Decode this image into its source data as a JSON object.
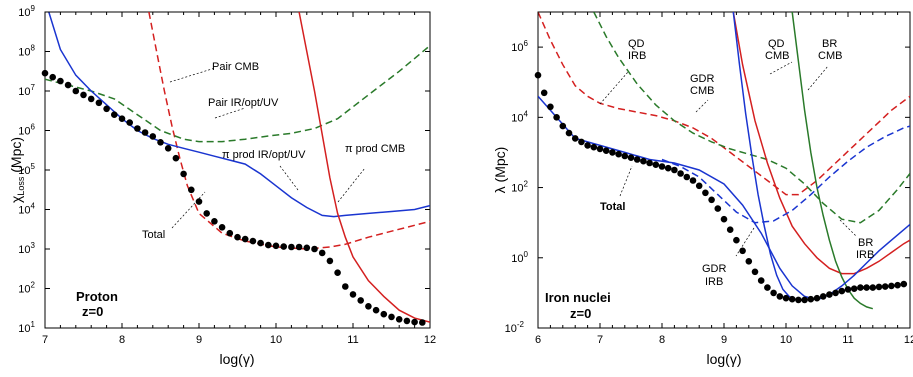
{
  "chart_data": [
    {
      "type": "line",
      "panel_label": "Proton",
      "panel_sublabel": "z=0",
      "xlabel": "log(γ)",
      "ylabel": "χ_Loss (Mpc)",
      "ylabel_main": "χ",
      "ylabel_sub": "Loss",
      "ylabel_unit": " (Mpc)",
      "xlim": [
        7,
        12
      ],
      "ylim_log10": [
        1,
        9
      ],
      "y_scale": "log",
      "xticks": [
        "7",
        "8",
        "9",
        "10",
        "11",
        "12"
      ],
      "ytick_base": "10",
      "ytick_exponents": [
        "1",
        "2",
        "3",
        "4",
        "5",
        "6",
        "7",
        "8",
        "9"
      ],
      "series": [
        {
          "name": "Pair CMB",
          "color": "#d42020",
          "style": "dashed",
          "x": [
            8.35,
            8.45,
            8.55,
            8.65,
            8.75,
            8.85,
            9.0,
            9.3,
            9.6,
            10.0,
            10.4,
            10.7,
            10.9,
            11.2,
            11.5,
            11.8,
            12.0
          ],
          "y_log10": [
            9.0,
            8.0,
            7.0,
            6.1,
            5.3,
            4.6,
            3.9,
            3.4,
            3.2,
            3.05,
            3.0,
            3.05,
            3.12,
            3.3,
            3.45,
            3.6,
            3.7
          ]
        },
        {
          "name": "Pair IR/opt/UV",
          "color": "#2a7a2a",
          "style": "dashed",
          "x": [
            7.0,
            7.3,
            7.6,
            7.9,
            8.2,
            8.5,
            8.8,
            9.0,
            9.3,
            9.6,
            9.9,
            10.2,
            10.5,
            10.8,
            11.0,
            11.3,
            11.6,
            12.0
          ],
          "y_log10": [
            7.3,
            7.15,
            7.0,
            6.8,
            6.4,
            6.0,
            5.78,
            5.72,
            5.72,
            5.78,
            5.86,
            5.93,
            6.05,
            6.3,
            6.6,
            7.05,
            7.5,
            8.15
          ]
        },
        {
          "name": "Total (proton curve)",
          "color": "#1a35d0",
          "style": "solid",
          "x": [
            7.05,
            7.2,
            7.4,
            7.6,
            7.8,
            8.0,
            8.2,
            8.4,
            8.6,
            8.8,
            9.0,
            9.2,
            9.4,
            9.6,
            9.8,
            10.0,
            10.2,
            10.4,
            10.6,
            10.75,
            10.9,
            11.2,
            11.5,
            11.8,
            12.0
          ],
          "y_log10": [
            9.0,
            8.05,
            7.4,
            7.0,
            6.65,
            6.3,
            6.0,
            5.8,
            5.65,
            5.55,
            5.45,
            5.35,
            5.25,
            5.15,
            4.9,
            4.6,
            4.3,
            4.05,
            3.85,
            3.82,
            3.85,
            3.9,
            3.95,
            4.0,
            4.1
          ]
        },
        {
          "name": "π prod CMB",
          "color": "#d42020",
          "style": "solid",
          "x": [
            10.3,
            10.4,
            10.5,
            10.6,
            10.7,
            10.8,
            10.9,
            11.0,
            11.2,
            11.4,
            11.6,
            11.8,
            12.0
          ],
          "y_log10": [
            9.0,
            8.0,
            7.0,
            5.9,
            4.8,
            3.9,
            3.3,
            2.8,
            2.2,
            1.8,
            1.45,
            1.25,
            1.15
          ]
        }
      ],
      "points": {
        "name": "Total",
        "x": [
          7.0,
          7.1,
          7.2,
          7.3,
          7.4,
          7.5,
          7.6,
          7.7,
          7.8,
          7.9,
          8.0,
          8.1,
          8.2,
          8.3,
          8.4,
          8.5,
          8.6,
          8.7,
          8.8,
          8.9,
          9.0,
          9.1,
          9.2,
          9.3,
          9.4,
          9.5,
          9.6,
          9.7,
          9.8,
          9.9,
          10.0,
          10.1,
          10.2,
          10.3,
          10.4,
          10.5,
          10.6,
          10.7,
          10.8,
          10.9,
          11.0,
          11.1,
          11.2,
          11.3,
          11.4,
          11.5,
          11.6,
          11.7,
          11.8,
          11.9
        ],
        "y_log10": [
          7.45,
          7.35,
          7.25,
          7.15,
          7.0,
          6.9,
          6.8,
          6.7,
          6.55,
          6.4,
          6.3,
          6.2,
          6.05,
          5.95,
          5.85,
          5.7,
          5.55,
          5.3,
          4.9,
          4.5,
          4.2,
          3.9,
          3.7,
          3.55,
          3.4,
          3.3,
          3.25,
          3.2,
          3.15,
          3.1,
          3.08,
          3.06,
          3.05,
          3.05,
          3.03,
          3.0,
          2.9,
          2.7,
          2.4,
          2.05,
          1.85,
          1.7,
          1.55,
          1.45,
          1.35,
          1.28,
          1.22,
          1.18,
          1.15,
          1.14
        ]
      },
      "annotations": [
        "Pair CMB",
        "Pair IR/opt/UV",
        "π prod IR/opt/UV",
        "π prod CMB",
        "Total"
      ]
    },
    {
      "type": "line",
      "panel_label": "Iron nuclei",
      "panel_sublabel": "z=0",
      "xlabel": "log(γ)",
      "ylabel": "λ (Mpc)",
      "xlim": [
        6,
        12
      ],
      "ylim_log10": [
        -2,
        7
      ],
      "y_scale": "log",
      "xticks": [
        "6",
        "7",
        "8",
        "9",
        "10",
        "11",
        "12"
      ],
      "ytick_base": "10",
      "ytick_exponents": [
        "-2",
        "0",
        "2",
        "4",
        "6"
      ],
      "series": [
        {
          "name": "QD IRB",
          "color": "#d42020",
          "style": "dashed",
          "x": [
            6.0,
            6.2,
            6.4,
            6.6,
            6.8,
            7.0,
            7.3,
            7.6,
            7.9,
            8.2,
            8.5,
            8.8,
            9.1,
            9.4,
            9.7,
            10.0,
            10.2,
            10.5,
            10.8,
            11.1,
            11.4,
            11.7,
            12.0
          ],
          "y_log10": [
            7.0,
            6.2,
            5.5,
            4.9,
            4.6,
            4.4,
            4.25,
            4.15,
            4.05,
            3.9,
            3.7,
            3.4,
            3.0,
            2.6,
            2.2,
            1.8,
            1.8,
            2.2,
            2.7,
            3.2,
            3.7,
            4.2,
            4.6
          ]
        },
        {
          "name": "GDR CMB",
          "color": "#2a7a2a",
          "style": "dashed",
          "x": [
            6.9,
            7.1,
            7.3,
            7.6,
            7.9,
            8.2,
            8.5,
            8.8,
            9.1,
            9.4,
            9.7,
            10.0,
            10.3,
            10.6,
            10.9,
            11.2,
            11.5,
            11.8,
            12.0
          ],
          "y_log10": [
            7.0,
            6.3,
            5.7,
            4.95,
            4.35,
            3.9,
            3.55,
            3.3,
            3.1,
            2.95,
            2.8,
            2.55,
            2.1,
            1.55,
            1.1,
            1.0,
            1.35,
            1.95,
            2.4
          ]
        },
        {
          "name": "QD CMB",
          "color": "#d42020",
          "style": "solid",
          "x": [
            9.15,
            9.3,
            9.5,
            9.7,
            9.9,
            10.1,
            10.3,
            10.5,
            10.7,
            10.9,
            11.1,
            11.3,
            11.5,
            11.7,
            11.9,
            12.0
          ],
          "y_log10": [
            7.0,
            5.5,
            3.9,
            2.7,
            1.7,
            0.9,
            0.4,
            0.0,
            -0.3,
            -0.45,
            -0.45,
            -0.3,
            -0.1,
            0.15,
            0.4,
            0.5
          ]
        },
        {
          "name": "BR CMB",
          "color": "#2a7a2a",
          "style": "solid",
          "x": [
            10.1,
            10.2,
            10.3,
            10.4,
            10.5,
            10.6,
            10.7,
            10.8,
            10.9,
            11.0,
            11.1,
            11.2,
            11.3,
            11.4
          ],
          "y_log10": [
            7.0,
            5.6,
            4.2,
            3.0,
            2.0,
            1.2,
            0.5,
            -0.1,
            -0.55,
            -0.9,
            -1.15,
            -1.3,
            -1.4,
            -1.45
          ]
        },
        {
          "name": "GDR IRB",
          "color": "#1a35d0",
          "style": "solid",
          "x": [
            6.0,
            6.3,
            6.6,
            7.0,
            7.4,
            7.8,
            8.2,
            8.6,
            9.0,
            9.3,
            9.6,
            9.9,
            10.1,
            10.3,
            10.5,
            10.7,
            10.9,
            11.1,
            11.3,
            11.5,
            11.7,
            11.9,
            12.0
          ],
          "y_log10": [
            4.6,
            4.0,
            3.4,
            3.2,
            3.0,
            2.8,
            2.7,
            2.5,
            2.1,
            1.5,
            0.7,
            -0.3,
            -0.8,
            -1.1,
            -1.2,
            -1.05,
            -0.8,
            -0.5,
            -0.15,
            0.2,
            0.5,
            0.8,
            0.95
          ]
        },
        {
          "name": "BR IRB",
          "color": "#1a35d0",
          "style": "dashed",
          "x": [
            8.0,
            8.3,
            8.6,
            8.9,
            9.2,
            9.5,
            9.8,
            10.1,
            10.4,
            10.7,
            11.0,
            11.3,
            11.6,
            11.9,
            12.0
          ],
          "y_log10": [
            2.8,
            2.6,
            2.3,
            1.8,
            1.3,
            1.0,
            1.05,
            1.35,
            1.8,
            2.3,
            2.75,
            3.15,
            3.45,
            3.7,
            3.75
          ]
        },
        {
          "name": "GDR IRB (steep)",
          "color": "#1a35d0",
          "style": "solid",
          "x": [
            9.15,
            9.25,
            9.35,
            9.45,
            9.55,
            9.65,
            9.75,
            9.85,
            9.95,
            10.05,
            10.15
          ],
          "y_log10": [
            7.0,
            5.5,
            4.1,
            2.9,
            1.8,
            0.9,
            0.1,
            -0.5,
            -0.9,
            -1.1,
            -1.2
          ]
        }
      ],
      "points": {
        "name": "Total",
        "x": [
          6.0,
          6.1,
          6.2,
          6.3,
          6.4,
          6.5,
          6.6,
          6.7,
          6.8,
          6.9,
          7.0,
          7.1,
          7.2,
          7.3,
          7.4,
          7.5,
          7.6,
          7.7,
          7.8,
          7.9,
          8.0,
          8.1,
          8.2,
          8.3,
          8.4,
          8.5,
          8.6,
          8.7,
          8.8,
          8.9,
          9.0,
          9.1,
          9.2,
          9.3,
          9.4,
          9.5,
          9.6,
          9.7,
          9.8,
          9.9,
          10.0,
          10.1,
          10.2,
          10.3,
          10.4,
          10.5,
          10.6,
          10.7,
          10.8,
          10.9,
          11.0,
          11.1,
          11.2,
          11.3,
          11.4,
          11.5,
          11.6,
          11.7,
          11.8,
          11.9
        ],
        "y_log10": [
          5.2,
          4.7,
          4.3,
          4.0,
          3.75,
          3.55,
          3.4,
          3.3,
          3.2,
          3.15,
          3.1,
          3.05,
          3.0,
          2.95,
          2.9,
          2.85,
          2.8,
          2.75,
          2.7,
          2.65,
          2.6,
          2.55,
          2.5,
          2.4,
          2.3,
          2.2,
          2.05,
          1.85,
          1.65,
          1.4,
          1.1,
          0.8,
          0.5,
          0.2,
          -0.1,
          -0.4,
          -0.65,
          -0.85,
          -1.0,
          -1.1,
          -1.15,
          -1.18,
          -1.2,
          -1.2,
          -1.18,
          -1.15,
          -1.1,
          -1.05,
          -1.0,
          -0.95,
          -0.9,
          -0.88,
          -0.85,
          -0.85,
          -0.85,
          -0.83,
          -0.82,
          -0.8,
          -0.78,
          -0.75
        ]
      },
      "annotations": [
        "QD IRB",
        "GDR CMB",
        "QD CMB",
        "BR CMB",
        "BR IRB",
        "GDR IRB",
        "Total"
      ]
    }
  ]
}
